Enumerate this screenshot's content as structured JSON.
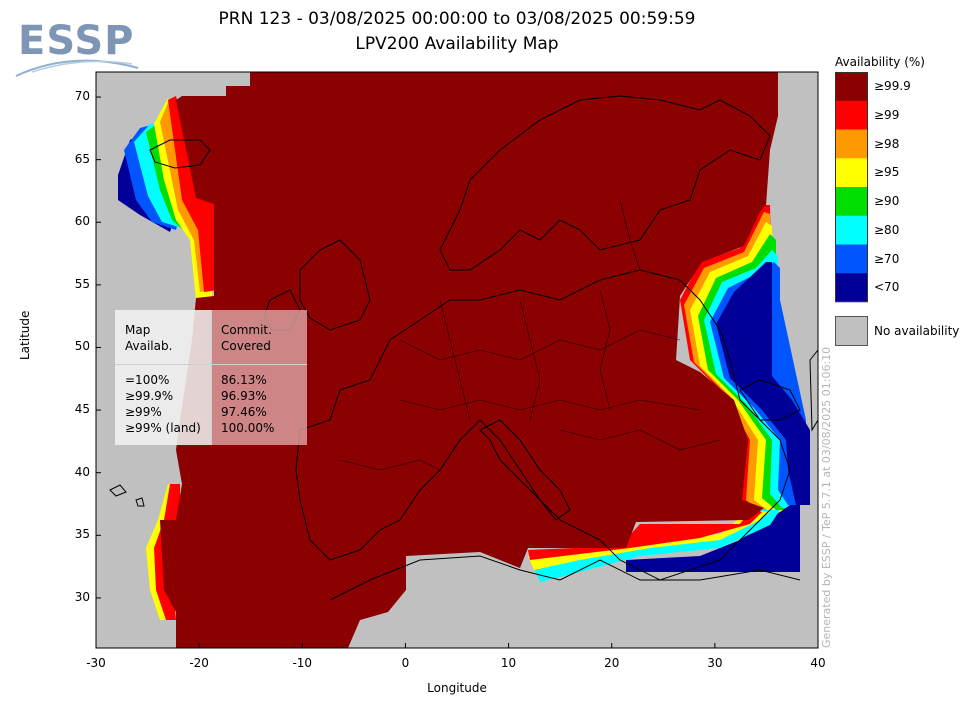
{
  "logo": {
    "text": "ESSP"
  },
  "title": {
    "line1": "PRN 123 - 03/08/2025 00:00:00 to 03/08/2025 00:59:59",
    "line2": "LPV200 Availability Map"
  },
  "axes": {
    "xlabel": "Longitude",
    "ylabel": "Latitude",
    "x_ticks": [
      -30,
      -20,
      -10,
      0,
      10,
      20,
      30,
      40
    ],
    "y_ticks": [
      30,
      35,
      40,
      45,
      50,
      55,
      60,
      65,
      70
    ],
    "x_range": [
      -30,
      40
    ],
    "y_range": [
      26,
      72
    ]
  },
  "legend": {
    "title": "Availability (%)",
    "items": [
      {
        "label": "≥99.9",
        "color": "#8b0000"
      },
      {
        "label": "≥99",
        "color": "#ff0000"
      },
      {
        "label": "≥98",
        "color": "#ff9900"
      },
      {
        "label": "≥95",
        "color": "#ffff00"
      },
      {
        "label": "≥90",
        "color": "#00dd00"
      },
      {
        "label": "≥80",
        "color": "#00ffff"
      },
      {
        "label": "≥70",
        "color": "#0055ff"
      },
      {
        "label": "<70",
        "color": "#000099"
      }
    ],
    "no_availability": {
      "label": "No availability",
      "color": "#c0c0c0"
    }
  },
  "stats_table": {
    "header_left": [
      "Map",
      "Availab."
    ],
    "header_right": [
      "Commit.",
      "Covered"
    ],
    "rows": [
      {
        "label": "=100%",
        "value": "86.13%"
      },
      {
        "label": "≥99.9%",
        "value": "96.93%"
      },
      {
        "label": "≥99%",
        "value": "97.46%"
      },
      {
        "label": "≥99% (land)",
        "value": "100.00%"
      }
    ]
  },
  "credit": "Generated by ESSP / TeP 5.7.1 at 03/08/2025 01:06:10",
  "colors": {
    "no_availability": "#c0c0c0",
    "coastline": "#000000"
  }
}
